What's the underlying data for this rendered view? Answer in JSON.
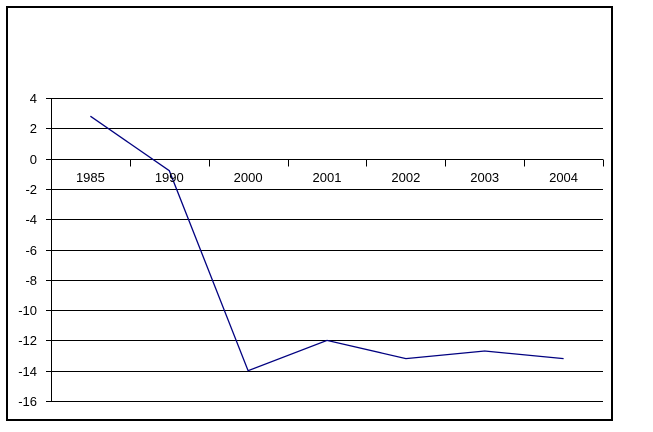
{
  "chart_data": {
    "type": "line",
    "title": "",
    "xlabel": "",
    "ylabel": "",
    "categories": [
      "1985",
      "1990",
      "2000",
      "2001",
      "2002",
      "2003",
      "2004"
    ],
    "values": [
      2.8,
      -0.8,
      -14,
      -12,
      -13.2,
      -12.7,
      -13.2
    ],
    "y_ticks": [
      4,
      2,
      0,
      -2,
      -4,
      -6,
      -8,
      -10,
      -12,
      -14,
      -16
    ],
    "ylim": [
      -16,
      4
    ],
    "grid": "horizontal",
    "legend": "none",
    "line_color": "#000080",
    "axis_color": "#000000",
    "label_color": "#000000",
    "background_color": "#ffffff",
    "border_color": "#000000"
  }
}
